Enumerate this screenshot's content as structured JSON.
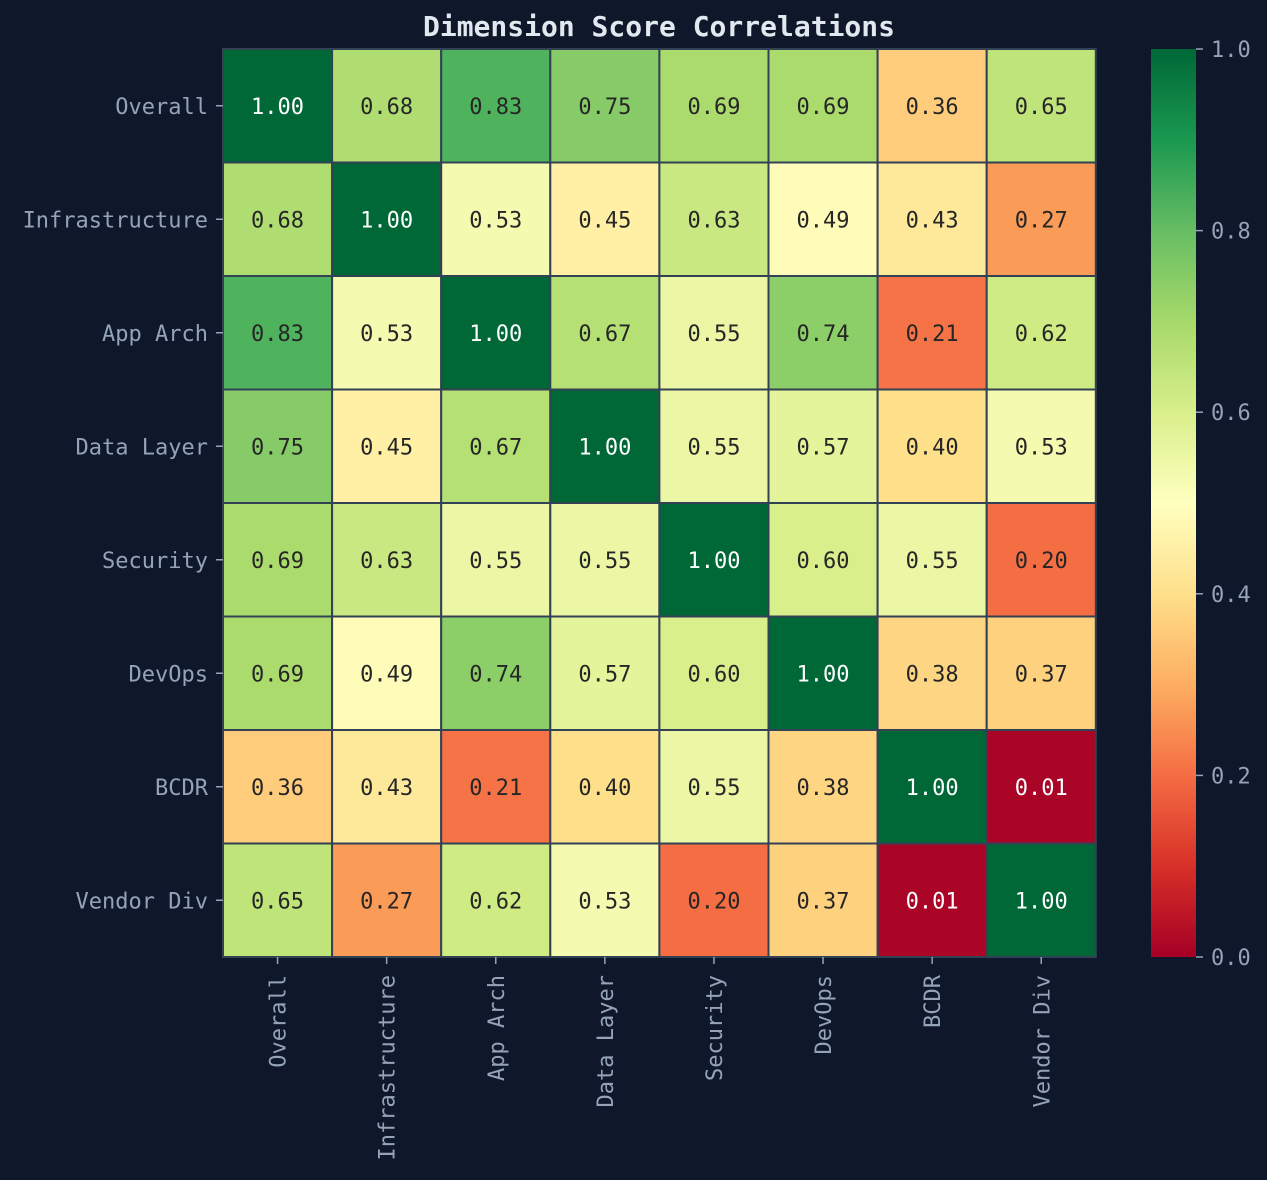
{
  "chart_data": {
    "type": "heatmap",
    "title": "Dimension Score Correlations",
    "labels": [
      "Overall",
      "Infrastructure",
      "App Arch",
      "Data Layer",
      "Security",
      "DevOps",
      "BCDR",
      "Vendor Div"
    ],
    "matrix": [
      [
        1.0,
        0.68,
        0.83,
        0.75,
        0.69,
        0.69,
        0.36,
        0.65
      ],
      [
        0.68,
        1.0,
        0.53,
        0.45,
        0.63,
        0.49,
        0.43,
        0.27
      ],
      [
        0.83,
        0.53,
        1.0,
        0.67,
        0.55,
        0.74,
        0.21,
        0.62
      ],
      [
        0.75,
        0.45,
        0.67,
        1.0,
        0.55,
        0.57,
        0.4,
        0.53
      ],
      [
        0.69,
        0.63,
        0.55,
        0.55,
        1.0,
        0.6,
        0.55,
        0.2
      ],
      [
        0.69,
        0.49,
        0.74,
        0.57,
        0.6,
        1.0,
        0.38,
        0.37
      ],
      [
        0.36,
        0.43,
        0.21,
        0.4,
        0.55,
        0.38,
        1.0,
        0.01
      ],
      [
        0.65,
        0.27,
        0.62,
        0.53,
        0.2,
        0.37,
        0.01,
        1.0
      ]
    ],
    "value_format": "0.00",
    "colormap": "RdYlGn",
    "vmin": 0.0,
    "vmax": 1.0,
    "colorbar_ticks": [
      "0.0",
      "0.2",
      "0.4",
      "0.6",
      "0.8",
      "1.0"
    ],
    "colors": {
      "background": "#0f172a",
      "cell_border": "#334155",
      "tick_text": "#94a3b8",
      "title_text": "#e2e8f0"
    }
  }
}
